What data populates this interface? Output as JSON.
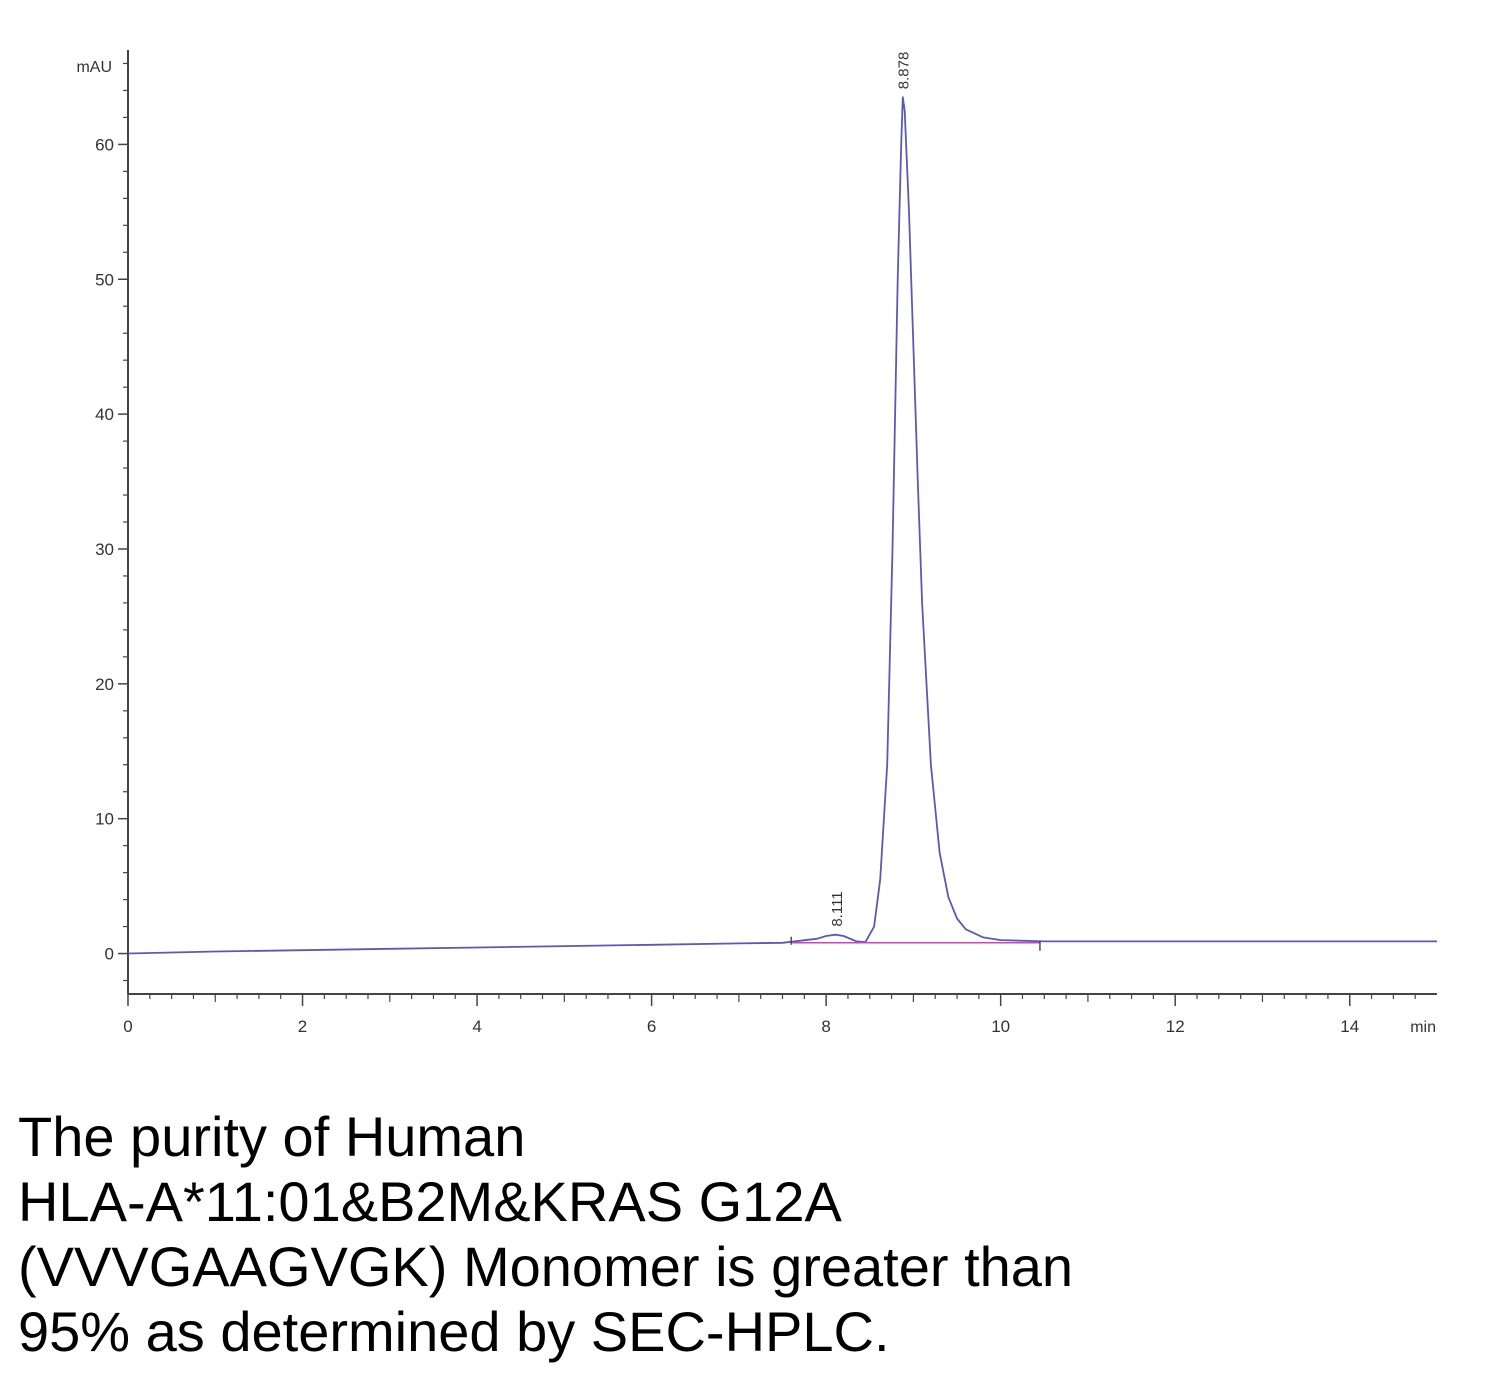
{
  "chart_data": {
    "type": "line",
    "ylabel": "mAU",
    "xlabel": "min",
    "xlim": [
      0,
      15
    ],
    "ylim": [
      -3,
      67
    ],
    "x_ticks": [
      0,
      2,
      4,
      6,
      8,
      10,
      12,
      14
    ],
    "x_tick_labels": [
      "0",
      "2",
      "4",
      "6",
      "8",
      "10",
      "12",
      "14"
    ],
    "y_ticks": [
      0,
      10,
      20,
      30,
      40,
      50,
      60
    ],
    "y_tick_labels": [
      "0",
      "10",
      "20",
      "30",
      "40",
      "50",
      "60"
    ],
    "grid": false,
    "colors": {
      "trace": "#5a5ab4",
      "baseline": "#d040c0",
      "axis": "#444444"
    },
    "series": [
      {
        "x": [
          0,
          1,
          2,
          3,
          4,
          5,
          6,
          7,
          7.5,
          7.9,
          8.0,
          8.11,
          8.2,
          8.35,
          8.45,
          8.55,
          8.62,
          8.7,
          8.76,
          8.82,
          8.86,
          8.878,
          8.9,
          8.95,
          9.0,
          9.05,
          9.1,
          9.2,
          9.3,
          9.4,
          9.5,
          9.6,
          9.8,
          10.0,
          10.5,
          11,
          12,
          13,
          14,
          15
        ],
        "y": [
          0,
          0.15,
          0.25,
          0.35,
          0.45,
          0.55,
          0.65,
          0.75,
          0.8,
          1.1,
          1.3,
          1.4,
          1.3,
          0.9,
          0.85,
          2.0,
          5.5,
          14,
          30,
          50,
          60,
          63.5,
          62.5,
          55,
          45,
          35,
          26,
          14,
          7.5,
          4.2,
          2.6,
          1.8,
          1.2,
          1.0,
          0.9,
          0.9,
          0.9,
          0.9,
          0.9,
          0.9
        ]
      }
    ],
    "baseline_segments": [
      {
        "x": [
          7.6,
          10.45
        ],
        "y": [
          0.8,
          0.8
        ]
      }
    ],
    "peak_labels": [
      {
        "x": 8.111,
        "y": 1.4,
        "text": "8.111"
      },
      {
        "x": 8.878,
        "y": 63.5,
        "text": "8.878"
      }
    ]
  },
  "caption": {
    "lines": [
      "The purity of Human",
      "HLA-A*11:01&B2M&KRAS G12A",
      "(VVVGAAGVGK) Monomer is greater than",
      "95% as determined by SEC-HPLC."
    ]
  }
}
